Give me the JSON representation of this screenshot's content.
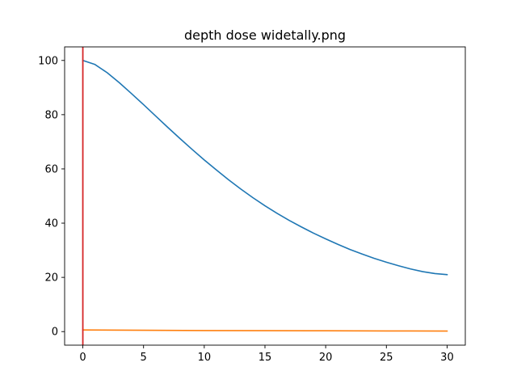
{
  "chart_data": {
    "type": "line",
    "title": "depth dose widetally.png",
    "xlabel": "",
    "ylabel": "",
    "xlim": [
      -1.5,
      31.5
    ],
    "ylim": [
      -5,
      105
    ],
    "xticks": [
      0,
      5,
      10,
      15,
      20,
      25,
      30
    ],
    "yticks": [
      0,
      20,
      40,
      60,
      80,
      100
    ],
    "grid": false,
    "series": [
      {
        "color": "#1f77b4",
        "x": [
          0,
          1,
          2,
          3,
          4,
          5,
          6,
          7,
          8,
          9,
          10,
          11,
          12,
          13,
          14,
          15,
          16,
          17,
          18,
          19,
          20,
          21,
          22,
          23,
          24,
          25,
          26,
          27,
          28,
          29,
          30
        ],
        "y": [
          100,
          98.5,
          95.5,
          91.8,
          87.8,
          83.7,
          79.5,
          75.3,
          71.2,
          67.2,
          63.3,
          59.6,
          56.0,
          52.6,
          49.4,
          46.4,
          43.6,
          41.0,
          38.6,
          36.3,
          34.2,
          32.2,
          30.3,
          28.6,
          27.0,
          25.6,
          24.3,
          23.1,
          22.1,
          21.4,
          21.0
        ]
      },
      {
        "color": "#ff7f0e",
        "x": [
          0,
          5,
          10,
          15,
          20,
          25,
          30
        ],
        "y": [
          0.6,
          0.5,
          0.4,
          0.35,
          0.3,
          0.25,
          0.2
        ]
      }
    ],
    "vlines": [
      {
        "x": 0,
        "color": "#d62728"
      }
    ]
  }
}
